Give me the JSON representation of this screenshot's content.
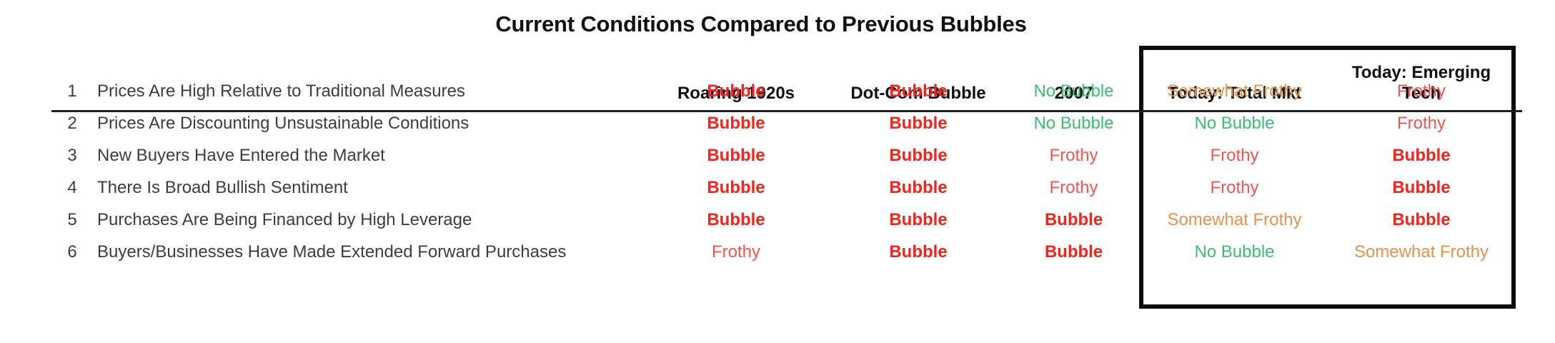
{
  "chart_data": {
    "type": "table",
    "title": "Current Conditions Compared to Previous Bubbles",
    "columns": [
      "Roaring 1920s",
      "Dot-Com Bubble",
      "2007",
      "Today: Total Mkt",
      "Today: Emerging Tech"
    ],
    "row_numbers": [
      "1",
      "2",
      "3",
      "4",
      "5",
      "6"
    ],
    "row_labels": [
      "Prices Are High Relative to Traditional Measures",
      "Prices Are Discounting Unsustainable Conditions",
      "New Buyers Have Entered the Market",
      "There Is Broad Bullish Sentiment",
      "Purchases Are Being Financed by High Leverage",
      "Buyers/Businesses Have Made Extended Forward Purchases"
    ],
    "rows": [
      [
        "Bubble",
        "Bubble",
        "No Bubble",
        "Somewhat Frothy",
        "Frothy"
      ],
      [
        "Bubble",
        "Bubble",
        "No Bubble",
        "No Bubble",
        "Frothy"
      ],
      [
        "Bubble",
        "Bubble",
        "Frothy",
        "Frothy",
        "Bubble"
      ],
      [
        "Bubble",
        "Bubble",
        "Frothy",
        "Frothy",
        "Bubble"
      ],
      [
        "Bubble",
        "Bubble",
        "Bubble",
        "Somewhat Frothy",
        "Bubble"
      ],
      [
        "Frothy",
        "Bubble",
        "Bubble",
        "No Bubble",
        "Somewhat Frothy"
      ]
    ],
    "highlighted_columns": [
      "Today: Total Mkt",
      "Today: Emerging Tech"
    ],
    "layout": {
      "grid": "off",
      "highlight_box": "black border around the two Today columns"
    }
  },
  "status_styles": {
    "Bubble": {
      "color": "#f5231c",
      "bold": true
    },
    "Frothy": {
      "color": "#f6554f",
      "bold": false
    },
    "No Bubble": {
      "color": "#3ebd72",
      "bold": false
    },
    "Somewhat Frothy": {
      "color": "#e8924a",
      "bold": false
    }
  },
  "colors": {
    "title_ink": "#111111",
    "label_ink": "#3d3d3d",
    "rule": "#1f1f1f",
    "box_border": "#0d0d0d",
    "background": "#ffffff"
  }
}
